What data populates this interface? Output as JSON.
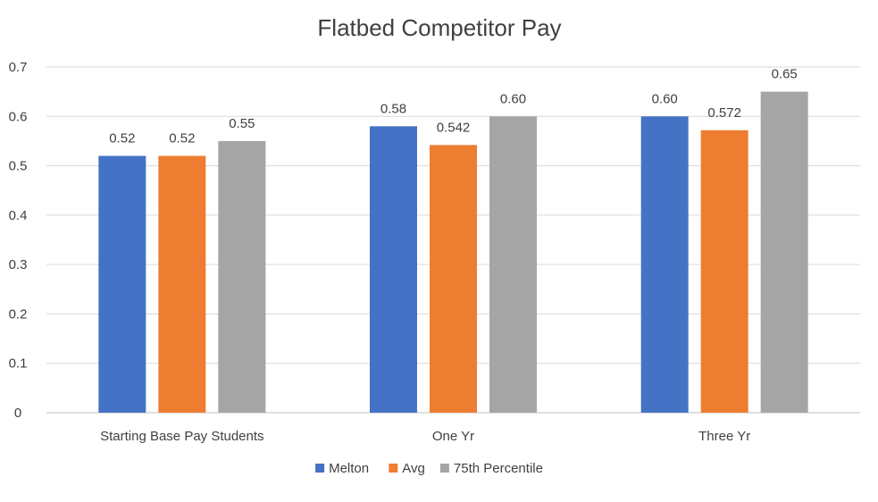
{
  "chart_data": {
    "type": "bar",
    "title": "Flatbed Competitor Pay",
    "xlabel": "",
    "ylabel": "",
    "categories": [
      "Starting Base Pay Students",
      "One Yr",
      "Three Yr"
    ],
    "series": [
      {
        "name": "Melton",
        "color": "#4472C4",
        "values": [
          0.52,
          0.58,
          0.6
        ],
        "labels": [
          "0.52",
          "0.58",
          "0.60"
        ]
      },
      {
        "name": "Avg",
        "color": "#ED7D31",
        "values": [
          0.52,
          0.542,
          0.572
        ],
        "labels": [
          "0.52",
          "0.542",
          "0.572"
        ]
      },
      {
        "name": "75th Percentile",
        "color": "#A5A5A5",
        "values": [
          0.55,
          0.6,
          0.65
        ],
        "labels": [
          "0.55",
          "0.60",
          "0.65"
        ]
      }
    ],
    "ylim": [
      0,
      0.7
    ],
    "yticks": [
      0,
      0.1,
      0.2,
      0.3,
      0.4,
      0.5,
      0.6,
      0.7
    ],
    "ytick_labels": [
      "0",
      "0.1",
      "0.2",
      "0.3",
      "0.4",
      "0.5",
      "0.6",
      "0.7"
    ],
    "grid": true,
    "legend_position": "bottom"
  }
}
